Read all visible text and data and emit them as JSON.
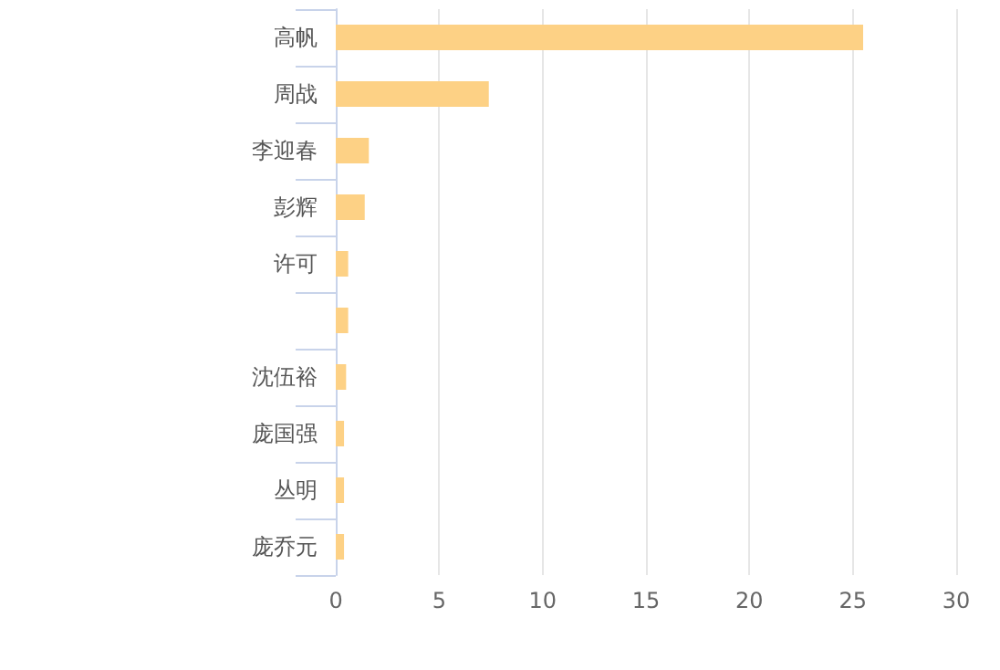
{
  "chart_data": {
    "type": "bar",
    "orientation": "horizontal",
    "categories": [
      "高帆",
      "周战",
      "李迎春",
      "彭辉",
      "许可",
      null,
      "沈伍裕",
      "庞国强",
      "丛明",
      "庞乔元"
    ],
    "values": [
      25.5,
      7.4,
      1.6,
      1.4,
      0.6,
      0.6,
      0.5,
      0.4,
      0.4,
      0.4
    ],
    "color": "#fdd185",
    "xlim": [
      0,
      30
    ],
    "xticks": [
      0,
      5,
      10,
      15,
      20,
      25,
      30
    ],
    "grid": "x"
  }
}
